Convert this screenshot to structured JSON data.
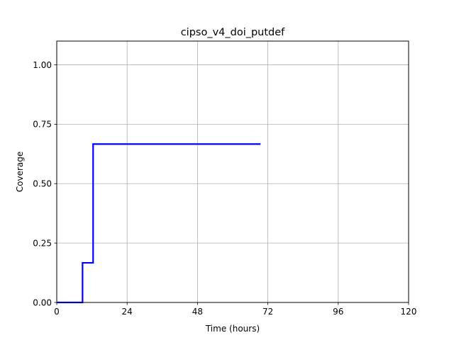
{
  "chart_data": {
    "type": "line",
    "title": "cipso_v4_doi_putdef",
    "xlabel": "Time (hours)",
    "ylabel": "Coverage",
    "xlim": [
      0,
      120
    ],
    "ylim": [
      0,
      1.1
    ],
    "xticks": [
      0,
      24,
      48,
      72,
      96,
      120
    ],
    "xtick_labels": [
      "0",
      "24",
      "48",
      "72",
      "96",
      "120"
    ],
    "yticks": [
      0,
      0.25,
      0.5,
      0.75,
      1.0
    ],
    "ytick_labels": [
      "0.00",
      "0.25",
      "0.50",
      "0.75",
      "1.00"
    ],
    "grid": true,
    "step": true,
    "series": [
      {
        "color": "#0000ff",
        "x": [
          0,
          8.8,
          8.8,
          12.4,
          12.4,
          69.5
        ],
        "y": [
          0,
          0,
          0.1667,
          0.1667,
          0.6667,
          0.6667
        ]
      }
    ]
  }
}
